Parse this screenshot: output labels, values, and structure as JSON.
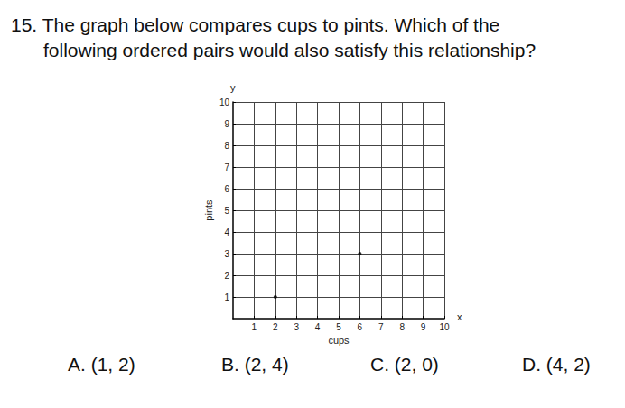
{
  "question": {
    "number": "15.",
    "lines": [
      "The graph below compares cups to pints. Which of the",
      "following ordered pairs would also satisfy this relationship?"
    ]
  },
  "options": [
    {
      "letter": "A.",
      "text": "(1, 2)"
    },
    {
      "letter": "B.",
      "text": "(2, 4)"
    },
    {
      "letter": "C.",
      "text": "(2, 0)"
    },
    {
      "letter": "D.",
      "text": "(4, 2)"
    }
  ],
  "chart_data": {
    "type": "scatter",
    "x": [
      2,
      6
    ],
    "values": [
      1,
      3
    ],
    "color": "#000000",
    "x_label": "cups",
    "y_label": "pints",
    "x_symbol": "x",
    "y_symbol": "y",
    "xlim": [
      0,
      10
    ],
    "ylim": [
      0,
      10
    ],
    "xticks": [
      1,
      2,
      3,
      4,
      5,
      6,
      7,
      8,
      9,
      10
    ],
    "yticks": [
      1,
      2,
      3,
      4,
      5,
      6,
      7,
      8,
      9,
      10
    ],
    "grid": true
  }
}
